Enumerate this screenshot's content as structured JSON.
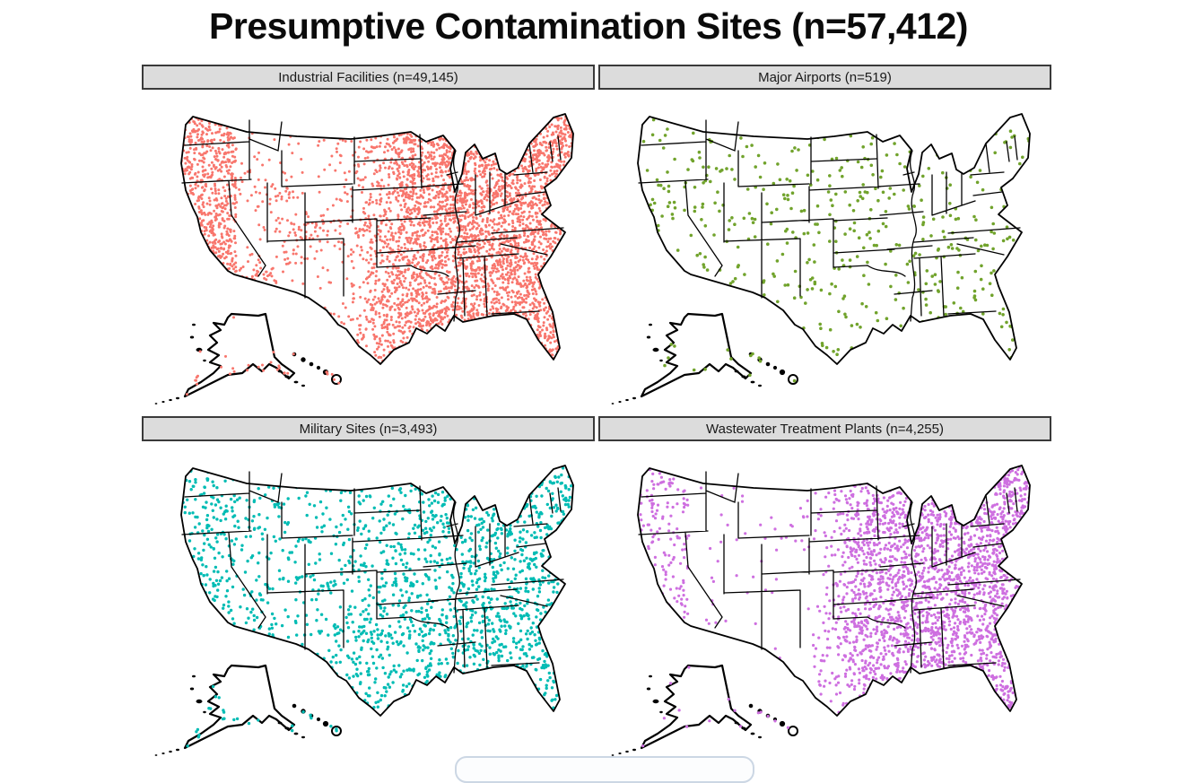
{
  "figure": {
    "title": "Presumptive Contamination Sites (n=57,412)",
    "total_n": 57412
  },
  "chart_data": {
    "type": "scatter",
    "subtype": "small-multiples US dot maps (presumptive contamination sites)",
    "title": "Presumptive Contamination Sites (n=57,412)",
    "total_n": 57412,
    "legend_position": "none",
    "map": {
      "regions": [
        "conterminous US with state borders",
        "Alaska inset",
        "Hawaii inset"
      ],
      "outline_color": "#000000",
      "header_bg": "#dcdcdc",
      "header_border": "#3a3a3a"
    },
    "panels": [
      {
        "id": "industrial",
        "label": "Industrial Facilities (n=49,145)",
        "category": "Industrial Facilities",
        "n": 49145,
        "dot_color": "#F8766D",
        "distribution": "very dense east of the Great Plains and along the West Coast; sparse intermountain west; clusters at Front Range, Salt Lake, Phoenix",
        "rendered_dots": 6000,
        "seed": 11
      },
      {
        "id": "airports",
        "label": "Major Airports (n=519)",
        "category": "Major Airports",
        "n": 519,
        "dot_color": "#71A32C",
        "distribution": "sparse, roughly uniform nationwide",
        "rendered_dots": 650,
        "seed": 22
      },
      {
        "id": "military",
        "label": "Military Sites (n=3,493)",
        "category": "Military Sites",
        "n": 3493,
        "dot_color": "#00BCB4",
        "distribution": "moderate density nationwide, denser in the east and along the coasts",
        "rendered_dots": 2600,
        "seed": 33
      },
      {
        "id": "wastewater",
        "label": "Wastewater Treatment Plants (n=4,255)",
        "category": "Wastewater Treatment Plants",
        "n": 4255,
        "dot_color": "#CE6FE0",
        "distribution": "dense in the eastern half and Northeast; sparse western interior",
        "rendered_dots": 3600,
        "seed": 44
      }
    ]
  },
  "overlay": {
    "bottom_toolbar_visible": true
  }
}
